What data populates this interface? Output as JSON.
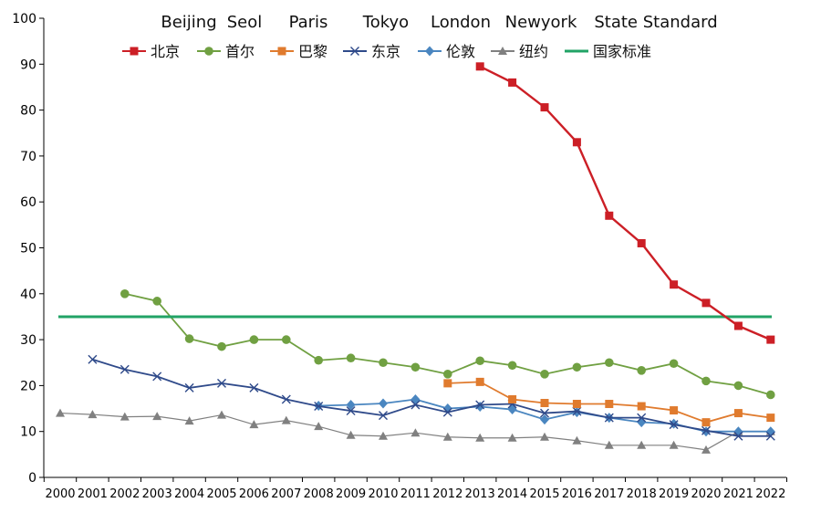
{
  "chart_data": {
    "type": "line",
    "title": "",
    "xlabel": "",
    "ylabel": "",
    "ylim": [
      0,
      100
    ],
    "yticks": [
      0,
      10,
      20,
      30,
      40,
      50,
      60,
      70,
      80,
      90,
      100
    ],
    "categories": [
      "2000",
      "2001",
      "2002",
      "2003",
      "2004",
      "2005",
      "2006",
      "2007",
      "2008",
      "2009",
      "2010",
      "2011",
      "2012",
      "2013",
      "2014",
      "2015",
      "2016",
      "2017",
      "2018",
      "2019",
      "2020",
      "2021",
      "2022"
    ],
    "english_labels": [
      "Beijing",
      "Seol",
      "Paris",
      "Tokyo",
      "London",
      "Newyork",
      "State Standard"
    ],
    "series": [
      {
        "name": "北京",
        "color": "#cc1f26",
        "marker": "square",
        "values": [
          null,
          null,
          null,
          null,
          null,
          null,
          null,
          null,
          null,
          null,
          null,
          null,
          null,
          89.5,
          86,
          80.6,
          73,
          57,
          51,
          42,
          38,
          33,
          30
        ]
      },
      {
        "name": "首尔",
        "color": "#70a042",
        "marker": "circle",
        "values": [
          null,
          null,
          40,
          38.4,
          30.2,
          28.5,
          30,
          30,
          25.5,
          26,
          25,
          24,
          22.5,
          25.4,
          24.4,
          22.5,
          24,
          25,
          23.3,
          24.8,
          21,
          20,
          18
        ]
      },
      {
        "name": "巴黎",
        "color": "#e07b2e",
        "marker": "square",
        "values": [
          null,
          null,
          null,
          null,
          null,
          null,
          null,
          null,
          null,
          null,
          null,
          null,
          20.5,
          20.8,
          17,
          16.2,
          16,
          16,
          15.5,
          14.6,
          12,
          14,
          13
        ]
      },
      {
        "name": "东京",
        "color": "#2f4a8a",
        "marker": "x",
        "values": [
          null,
          25.7,
          23.5,
          22,
          19.5,
          20.5,
          19.5,
          17,
          15.5,
          14.5,
          13.5,
          15.8,
          14.2,
          15.8,
          16,
          14,
          14.4,
          13,
          13,
          11.5,
          10.2,
          9,
          9
        ]
      },
      {
        "name": "伦敦",
        "color": "#4a86c0",
        "marker": "diamond",
        "values": [
          null,
          null,
          null,
          null,
          null,
          null,
          null,
          null,
          15.6,
          15.8,
          16.1,
          17,
          15,
          15.4,
          14.8,
          12.6,
          14.2,
          13,
          12,
          11.7,
          10,
          10,
          10
        ]
      },
      {
        "name": "纽约",
        "color": "#808080",
        "marker": "triangle",
        "values": [
          14,
          13.7,
          13.2,
          13.3,
          12.3,
          13.6,
          11.5,
          12.4,
          11.1,
          9.2,
          9,
          9.7,
          8.8,
          8.6,
          8.6,
          8.8,
          8,
          7,
          7,
          7,
          6,
          10,
          10
        ]
      },
      {
        "name": "国家标准",
        "color": "#21a366",
        "marker": "none",
        "values": [
          35,
          35,
          35,
          35,
          35,
          35,
          35,
          35,
          35,
          35,
          35,
          35,
          35,
          35,
          35,
          35,
          35,
          35,
          35,
          35,
          35,
          35,
          35
        ]
      }
    ]
  }
}
